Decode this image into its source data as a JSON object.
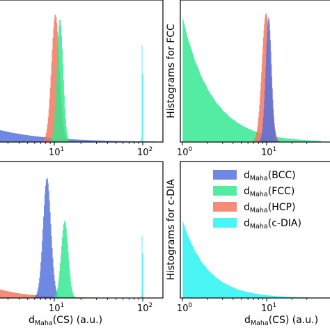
{
  "colors": {
    "BCC": "#4f6fdc",
    "FCC": "#2ee88d",
    "HCP": "#f4735a",
    "c-DIA": "#22f3f3"
  },
  "legend": {
    "placement": "bottom-right panel",
    "entries": [
      {
        "series": "BCC",
        "main": "d",
        "sub": "Maha",
        "tail": "(BCC)"
      },
      {
        "series": "FCC",
        "main": "d",
        "sub": "Maha",
        "tail": "(FCC)"
      },
      {
        "series": "HCP",
        "main": "d",
        "sub": "Maha",
        "tail": "(HCP)"
      },
      {
        "series": "c-DIA",
        "main": "d",
        "sub": "Maha",
        "tail": "(c-DIA)"
      }
    ]
  },
  "xlabel": {
    "main": "d",
    "sub": "Maha",
    "tail": "(CS) (a.u.)"
  },
  "chart_data": [
    {
      "type": "histogram",
      "panel": "top-left",
      "xscale": "log",
      "xlim": [
        1,
        150
      ],
      "ylabel": "",
      "xticks": [
        {
          "base": "10",
          "exp": "1"
        },
        {
          "base": "10",
          "exp": "2"
        }
      ],
      "series": [
        {
          "name": "BCC",
          "peaks": [
            {
              "center": 1.1,
              "width_decades": 0.55,
              "rel_height": 0.18,
              "start": 1.0
            }
          ]
        },
        {
          "name": "HCP",
          "peaks": [
            {
              "center": 10.2,
              "width_decades": 0.045,
              "rel_height": 0.95
            }
          ]
        },
        {
          "name": "FCC",
          "peaks": [
            {
              "center": 11.5,
              "width_decades": 0.035,
              "rel_height": 0.92
            }
          ]
        },
        {
          "name": "c-DIA",
          "peaks": [
            {
              "center": 98,
              "width_decades": 0.004,
              "rel_height": 0.97
            }
          ]
        }
      ]
    },
    {
      "type": "histogram",
      "panel": "top-right",
      "xscale": "log",
      "xlim": [
        1,
        35
      ],
      "ylabel": "Histograms for FCC",
      "xticks": [
        {
          "base": "10",
          "exp": "0"
        },
        {
          "base": "10",
          "exp": "1"
        }
      ],
      "series": [
        {
          "name": "FCC",
          "peaks": [
            {
              "center": 1.0,
              "width_decades": 0.35,
              "rel_height": 0.93,
              "start": 1.0
            }
          ]
        },
        {
          "name": "HCP",
          "peaks": [
            {
              "center": 9.8,
              "width_decades": 0.05,
              "rel_height": 0.97
            }
          ]
        },
        {
          "name": "BCC",
          "peaks": [
            {
              "center": 10.5,
              "width_decades": 0.035,
              "rel_height": 0.93
            }
          ]
        }
      ]
    },
    {
      "type": "histogram",
      "panel": "bottom-left",
      "xscale": "log",
      "xlim": [
        1,
        150
      ],
      "ylabel": "",
      "xticks": [
        {
          "base": "10",
          "exp": "1"
        },
        {
          "base": "10",
          "exp": "2"
        }
      ],
      "series": [
        {
          "name": "HCP",
          "peaks": [
            {
              "center": 1.1,
              "width_decades": 0.35,
              "rel_height": 0.2,
              "start": 1.0
            }
          ]
        },
        {
          "name": "BCC",
          "peaks": [
            {
              "center": 8.2,
              "width_decades": 0.045,
              "rel_height": 0.93
            }
          ]
        },
        {
          "name": "FCC",
          "peaks": [
            {
              "center": 13,
              "width_decades": 0.04,
              "rel_height": 0.6
            }
          ]
        },
        {
          "name": "c-DIA",
          "peaks": [
            {
              "center": 98,
              "width_decades": 0.004,
              "rel_height": 0.65
            }
          ]
        }
      ]
    },
    {
      "type": "histogram",
      "panel": "bottom-right",
      "xscale": "log",
      "xlim": [
        1,
        35
      ],
      "ylabel": "Histograms for c-DIA",
      "xticks": [
        {
          "base": "10",
          "exp": "0"
        },
        {
          "base": "10",
          "exp": "1"
        }
      ],
      "series": [
        {
          "name": "c-DIA",
          "peaks": [
            {
              "center": 1.0,
              "width_decades": 0.3,
              "rel_height": 0.6,
              "start": 1.0
            }
          ]
        }
      ]
    }
  ]
}
